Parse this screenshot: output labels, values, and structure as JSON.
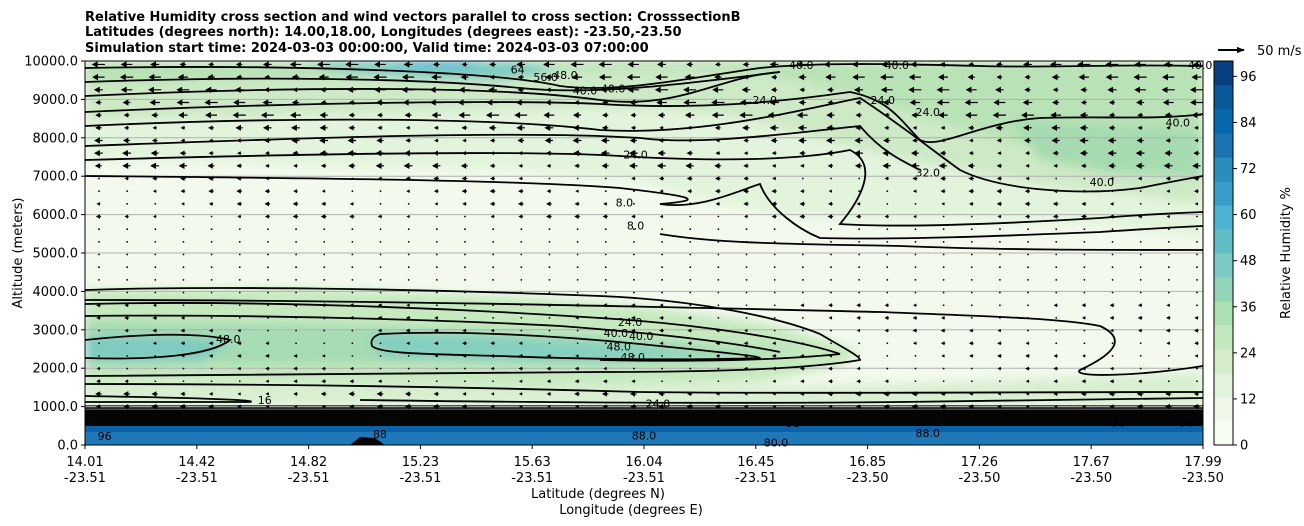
{
  "chart_data": {
    "type": "contourf",
    "title_lines": [
      "Relative Humidity cross section and wind vectors parallel to cross section: CrosssectionB",
      "Latitudes (degrees north): 14.00,18.00, Longitudes (degrees east): -23.50,-23.50",
      "Simulation start time: 2024-03-03 00:00:00, Valid time: 2024-03-03 07:00:00"
    ],
    "ylabel": "Altitude (meters)",
    "xlabel_lines": [
      "Latitude (degrees N)",
      "Longitude (degrees E)"
    ],
    "ylim": [
      0,
      10000
    ],
    "y_ticks": [
      "0.0",
      "1000.0",
      "2000.0",
      "3000.0",
      "4000.0",
      "5000.0",
      "6000.0",
      "7000.0",
      "8000.0",
      "9000.0",
      "10000.0"
    ],
    "y_tick_values": [
      0,
      1000,
      2000,
      3000,
      4000,
      5000,
      6000,
      7000,
      8000,
      9000,
      10000
    ],
    "x_ticks": [
      {
        "lat": "14.01",
        "lon": "-23.51"
      },
      {
        "lat": "14.42",
        "lon": "-23.51"
      },
      {
        "lat": "14.82",
        "lon": "-23.51"
      },
      {
        "lat": "15.23",
        "lon": "-23.51"
      },
      {
        "lat": "15.63",
        "lon": "-23.51"
      },
      {
        "lat": "16.04",
        "lon": "-23.51"
      },
      {
        "lat": "16.45",
        "lon": "-23.51"
      },
      {
        "lat": "16.85",
        "lon": "-23.50"
      },
      {
        "lat": "17.26",
        "lon": "-23.50"
      },
      {
        "lat": "17.67",
        "lon": "-23.50"
      },
      {
        "lat": "17.99",
        "lon": "-23.50"
      }
    ],
    "x_tick_fractions": [
      0,
      0.1,
      0.2,
      0.3,
      0.4,
      0.5,
      0.6,
      0.7,
      0.8,
      0.9,
      1.0
    ],
    "colorbar": {
      "label": "Relative Humidity %",
      "ticks": [
        "0",
        "12",
        "24",
        "36",
        "48",
        "60",
        "72",
        "84",
        "96"
      ],
      "tick_values": [
        0,
        12,
        24,
        36,
        48,
        60,
        72,
        84,
        96
      ],
      "range": [
        0,
        100
      ],
      "colors": [
        "#f7fcf0",
        "#eef8e8",
        "#e0f3db",
        "#d2eecb",
        "#c2e8bd",
        "#ade0b3",
        "#93d5b8",
        "#7bcbc4",
        "#62bcc8",
        "#4eb3d3",
        "#389cc8",
        "#2b8cbe",
        "#1a74b2",
        "#0868ac",
        "#085a9a",
        "#084081"
      ]
    },
    "quiver_key": {
      "label": "50 m/s",
      "value": 50
    },
    "contour_labels": [
      {
        "text": "64",
        "lat": 15.55,
        "alt": 9780
      },
      {
        "text": "56.0",
        "lat": 15.65,
        "alt": 9580
      },
      {
        "text": "48.0",
        "lat": 15.72,
        "alt": 9640
      },
      {
        "text": "40.0",
        "lat": 15.79,
        "alt": 9230
      },
      {
        "text": "40.0",
        "lat": 15.89,
        "alt": 9290
      },
      {
        "text": "40.0",
        "lat": 16.56,
        "alt": 9900
      },
      {
        "text": "40.0",
        "lat": 16.9,
        "alt": 9900
      },
      {
        "text": "40.0",
        "lat": 17.98,
        "alt": 9900
      },
      {
        "text": "24.0",
        "lat": 16.43,
        "alt": 8980
      },
      {
        "text": "24.0",
        "lat": 16.85,
        "alt": 8990
      },
      {
        "text": "24.0",
        "lat": 17.01,
        "alt": 8670
      },
      {
        "text": "24.0",
        "lat": 15.97,
        "alt": 7560
      },
      {
        "text": "32.0",
        "lat": 17.01,
        "alt": 7100
      },
      {
        "text": "40.0",
        "lat": 17.63,
        "alt": 6850
      },
      {
        "text": "40.0",
        "lat": 17.9,
        "alt": 8400
      },
      {
        "text": "8.0",
        "lat": 15.93,
        "alt": 6320
      },
      {
        "text": "8.0",
        "lat": 15.97,
        "alt": 5720
      },
      {
        "text": "48.0",
        "lat": 14.52,
        "alt": 2760
      },
      {
        "text": "24.0",
        "lat": 15.95,
        "alt": 3200
      },
      {
        "text": "40.0",
        "lat": 15.9,
        "alt": 2920
      },
      {
        "text": "40.0",
        "lat": 15.99,
        "alt": 2840
      },
      {
        "text": "48.0",
        "lat": 15.91,
        "alt": 2560
      },
      {
        "text": "48.0",
        "lat": 15.96,
        "alt": 2290
      },
      {
        "text": "16",
        "lat": 14.65,
        "alt": 1170
      },
      {
        "text": "96",
        "lat": 14.08,
        "alt": 230
      },
      {
        "text": "88",
        "lat": 15.06,
        "alt": 280
      },
      {
        "text": "24.0",
        "lat": 16.05,
        "alt": 1080
      },
      {
        "text": "88.0",
        "lat": 16.0,
        "alt": 250
      },
      {
        "text": "80.0",
        "lat": 16.47,
        "alt": 70
      },
      {
        "text": "96",
        "lat": 16.53,
        "alt": 570
      },
      {
        "text": "88.0",
        "lat": 17.01,
        "alt": 310
      },
      {
        "text": "96",
        "lat": 17.69,
        "alt": 580
      },
      {
        "text": "96",
        "lat": 17.93,
        "alt": 580
      }
    ]
  }
}
